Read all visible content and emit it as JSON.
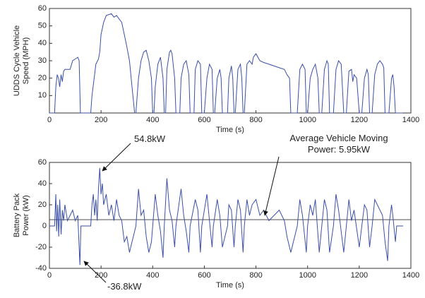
{
  "chart_data": [
    {
      "type": "line",
      "xlabel": "Time (s)",
      "ylabel": [
        "UDDS Cycle Vehicle",
        "Speed (MPH)"
      ],
      "xlim": [
        0,
        1400
      ],
      "xticks": [
        0,
        200,
        400,
        600,
        800,
        1000,
        1200,
        1400
      ],
      "ylim": [
        0,
        60
      ],
      "yticks": [
        10,
        20,
        30,
        40,
        50,
        60
      ],
      "series": [
        {
          "color": "#3b4fa8",
          "x": [
            0,
            20,
            25,
            30,
            35,
            40,
            45,
            50,
            55,
            60,
            80,
            90,
            100,
            110,
            115,
            120,
            160,
            165,
            175,
            180,
            190,
            195,
            200,
            210,
            220,
            240,
            250,
            260,
            270,
            280,
            290,
            300,
            310,
            320,
            330,
            335,
            345,
            355,
            365,
            375,
            385,
            395,
            400,
            405,
            410,
            420,
            430,
            440,
            445,
            450,
            455,
            465,
            470,
            475,
            485,
            490,
            505,
            510,
            520,
            530,
            540,
            545,
            560,
            565,
            575,
            585,
            590,
            600,
            610,
            620,
            630,
            635,
            640,
            650,
            660,
            665,
            670,
            690,
            695,
            705,
            710,
            715,
            720,
            730,
            740,
            745,
            750,
            755,
            765,
            775,
            785,
            790,
            800,
            815,
            830,
            850,
            870,
            890,
            910,
            920,
            930,
            935,
            960,
            970,
            980,
            990,
            995,
            1000,
            1010,
            1020,
            1030,
            1040,
            1045,
            1055,
            1065,
            1075,
            1080,
            1085,
            1100,
            1110,
            1120,
            1130,
            1140,
            1150,
            1160,
            1170,
            1175,
            1180,
            1190,
            1200,
            1210,
            1220,
            1230,
            1235,
            1240,
            1250,
            1260,
            1270,
            1280,
            1290,
            1295,
            1300,
            1315,
            1325,
            1330,
            1335,
            1340,
            1370
          ],
          "values": [
            0,
            0,
            15,
            22,
            20,
            15,
            22,
            18,
            24,
            25,
            25,
            30,
            31,
            32,
            30,
            0,
            0,
            10,
            22,
            28,
            31,
            35,
            45,
            52,
            56,
            57,
            55,
            56,
            54,
            52,
            45,
            38,
            30,
            15,
            0,
            0,
            20,
            30,
            35,
            36,
            30,
            20,
            0,
            0,
            15,
            28,
            32,
            20,
            0,
            0,
            25,
            35,
            36,
            34,
            20,
            0,
            0,
            20,
            28,
            30,
            22,
            0,
            0,
            25,
            30,
            28,
            0,
            0,
            20,
            28,
            25,
            0,
            0,
            20,
            25,
            20,
            0,
            0,
            20,
            27,
            20,
            0,
            0,
            25,
            28,
            20,
            0,
            0,
            28,
            30,
            28,
            32,
            34,
            30,
            29,
            28,
            27,
            26,
            25,
            22,
            20,
            0,
            0,
            25,
            28,
            25,
            0,
            0,
            20,
            25,
            28,
            20,
            0,
            0,
            25,
            30,
            28,
            0,
            0,
            25,
            30,
            28,
            0,
            0,
            24,
            25,
            18,
            22,
            20,
            0,
            0,
            20,
            25,
            22,
            0,
            0,
            22,
            28,
            30,
            28,
            26,
            0,
            0,
            20,
            22,
            15,
            0,
            0
          ]
        }
      ]
    },
    {
      "type": "line",
      "xlabel": "Time (s)",
      "ylabel": [
        "Battery Pack",
        "Power (kW)"
      ],
      "xlim": [
        0,
        1400
      ],
      "xticks": [
        0,
        200,
        400,
        600,
        800,
        1000,
        1200,
        1400
      ],
      "ylim": [
        -40,
        60
      ],
      "yticks": [
        -40,
        -20,
        0,
        20,
        40,
        60
      ],
      "reference_line": 5.95,
      "annotations": [
        {
          "text": [
            "54.8kW"
          ]
        },
        {
          "text": [
            "Average Vehicle Moving",
            "Power: 5.95kW"
          ]
        },
        {
          "text": [
            "-36.8kW"
          ]
        }
      ],
      "series": [
        {
          "color": "#3b4fa8",
          "x": [
            0,
            20,
            25,
            28,
            32,
            36,
            40,
            45,
            50,
            55,
            60,
            70,
            80,
            90,
            100,
            110,
            115,
            118,
            122,
            160,
            165,
            170,
            175,
            180,
            185,
            190,
            195,
            200,
            205,
            210,
            220,
            230,
            240,
            250,
            260,
            270,
            280,
            290,
            300,
            310,
            320,
            330,
            335,
            345,
            355,
            365,
            375,
            385,
            395,
            400,
            410,
            420,
            430,
            440,
            445,
            455,
            465,
            475,
            485,
            490,
            510,
            520,
            530,
            540,
            545,
            565,
            575,
            585,
            590,
            610,
            620,
            630,
            635,
            650,
            660,
            670,
            690,
            695,
            705,
            715,
            720,
            730,
            740,
            750,
            755,
            765,
            775,
            785,
            800,
            815,
            830,
            850,
            870,
            890,
            910,
            920,
            935,
            960,
            970,
            980,
            995,
            1000,
            1010,
            1020,
            1030,
            1045,
            1055,
            1065,
            1075,
            1085,
            1100,
            1110,
            1120,
            1140,
            1150,
            1160,
            1170,
            1180,
            1200,
            1210,
            1220,
            1230,
            1240,
            1250,
            1260,
            1270,
            1290,
            1300,
            1310,
            1315,
            1325,
            1330,
            1340,
            1345,
            1370
          ],
          "values": [
            0,
            0,
            30,
            -5,
            20,
            -10,
            25,
            -8,
            15,
            5,
            20,
            5,
            10,
            15,
            5,
            10,
            -20,
            -36.8,
            0,
            0,
            20,
            30,
            10,
            25,
            5,
            35,
            54.8,
            30,
            40,
            20,
            30,
            10,
            20,
            5,
            25,
            10,
            5,
            -15,
            -10,
            -25,
            -15,
            -5,
            0,
            35,
            10,
            15,
            -10,
            -25,
            -15,
            0,
            30,
            10,
            -5,
            -30,
            0,
            45,
            15,
            5,
            -20,
            0,
            35,
            10,
            -5,
            -25,
            0,
            25,
            15,
            -25,
            0,
            30,
            5,
            -20,
            0,
            25,
            10,
            -20,
            0,
            20,
            15,
            -20,
            0,
            25,
            15,
            -25,
            0,
            25,
            10,
            20,
            25,
            10,
            15,
            5,
            10,
            15,
            5,
            -10,
            -25,
            0,
            25,
            10,
            -25,
            0,
            20,
            10,
            25,
            -25,
            0,
            25,
            15,
            -25,
            0,
            30,
            15,
            -25,
            0,
            25,
            5,
            15,
            -20,
            0,
            20,
            15,
            -20,
            0,
            25,
            20,
            10,
            -15,
            -33,
            0,
            20,
            10,
            -15,
            0,
            0
          ]
        }
      ]
    }
  ]
}
